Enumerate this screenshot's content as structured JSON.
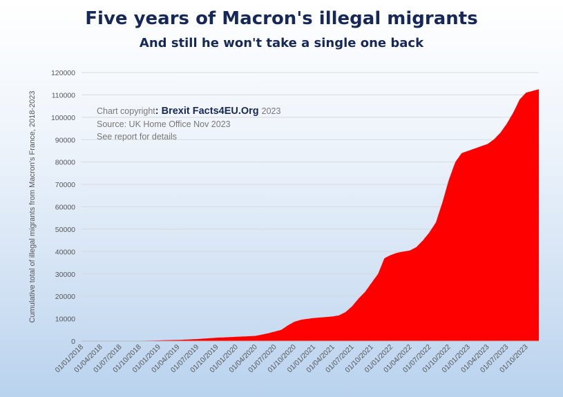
{
  "chart_data": {
    "type": "area",
    "title": "Five years of Macron's illegal migrants",
    "subtitle": "And still he won't take a single one back",
    "ylabel": "Cumulative total of illegal migrants from Macron's France, 2018-2023",
    "xlabel": "",
    "ylim": [
      0,
      120000
    ],
    "yticks": [
      0,
      10000,
      20000,
      30000,
      40000,
      50000,
      60000,
      70000,
      80000,
      90000,
      100000,
      110000,
      120000
    ],
    "xlim": [
      "2018-01-01",
      "2023-11-30"
    ],
    "xticks": [
      "01/01/2018",
      "01/04/2018",
      "01/07/2018",
      "01/10/2018",
      "01/01/2019",
      "01/04/2019",
      "01/07/2019",
      "01/10/2019",
      "01/01/2020",
      "01/04/2020",
      "01/07/2020",
      "01/10/2020",
      "01/01/2021",
      "01/04/2021",
      "01/07/2021",
      "01/10/2021",
      "01/01/2022",
      "01/04/2022",
      "01/07/2022",
      "01/10/2022",
      "01/01/2023",
      "01/04/2023",
      "01/07/2023",
      "01/10/2023"
    ],
    "grid": true,
    "color": "#ff0000",
    "series": [
      {
        "name": "",
        "points": [
          [
            "2018-01-01",
            0
          ],
          [
            "2018-07-01",
            0
          ],
          [
            "2018-12-31",
            300
          ],
          [
            "2019-02-01",
            400
          ],
          [
            "2019-04-01",
            500
          ],
          [
            "2019-07-01",
            900
          ],
          [
            "2019-10-01",
            1500
          ],
          [
            "2020-01-01",
            1900
          ],
          [
            "2020-04-01",
            2300
          ],
          [
            "2020-06-01",
            3500
          ],
          [
            "2020-08-01",
            5000
          ],
          [
            "2020-09-01",
            7000
          ],
          [
            "2020-10-01",
            8600
          ],
          [
            "2020-11-01",
            9500
          ],
          [
            "2021-01-01",
            10300
          ],
          [
            "2021-04-01",
            11000
          ],
          [
            "2021-05-01",
            11500
          ],
          [
            "2021-06-01",
            13000
          ],
          [
            "2021-07-01",
            15500
          ],
          [
            "2021-08-01",
            19000
          ],
          [
            "2021-09-01",
            22000
          ],
          [
            "2021-10-01",
            26000
          ],
          [
            "2021-11-01",
            30000
          ],
          [
            "2021-12-01",
            37000
          ],
          [
            "2022-01-01",
            38500
          ],
          [
            "2022-02-01",
            39500
          ],
          [
            "2022-04-01",
            40500
          ],
          [
            "2022-05-01",
            42000
          ],
          [
            "2022-06-01",
            45000
          ],
          [
            "2022-07-01",
            48500
          ],
          [
            "2022-08-01",
            53000
          ],
          [
            "2022-09-01",
            62000
          ],
          [
            "2022-10-01",
            72000
          ],
          [
            "2022-11-01",
            80000
          ],
          [
            "2022-12-01",
            84000
          ],
          [
            "2023-01-01",
            85000
          ],
          [
            "2023-03-01",
            87000
          ],
          [
            "2023-04-01",
            88000
          ],
          [
            "2023-05-01",
            90000
          ],
          [
            "2023-06-01",
            93000
          ],
          [
            "2023-07-01",
            97000
          ],
          [
            "2023-08-01",
            102000
          ],
          [
            "2023-09-01",
            108000
          ],
          [
            "2023-10-01",
            111000
          ],
          [
            "2023-11-30",
            112500
          ]
        ]
      }
    ],
    "annotations": {
      "copyright_prefix": "Chart copyright",
      "brand": ": Brexit Facts4EU.Org",
      "year": "2023",
      "source": "Source: UK Home Office Nov 2023",
      "note": "See report for details"
    }
  }
}
